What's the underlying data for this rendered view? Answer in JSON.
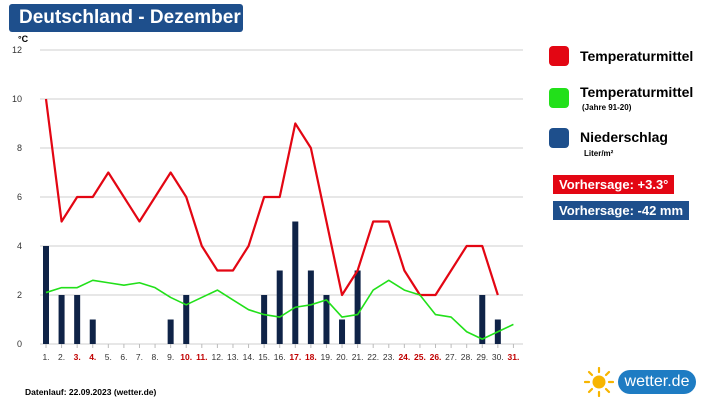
{
  "header": {
    "title": "Deutschland - Dezember"
  },
  "legend": {
    "items": [
      {
        "label": "Temperaturmittel",
        "sub": "",
        "color": "#e30613"
      },
      {
        "label": "Temperaturmittel",
        "sub": "(Jahre 91-20)",
        "color": "#22e01a"
      },
      {
        "label": "Niederschlag",
        "sub": "Liter/m²",
        "color": "#1e4f8c"
      }
    ]
  },
  "forecast": {
    "temp": "Vorhersage: +3.3°",
    "precip": "Vorhersage: -42 mm",
    "temp_color": "#e30613",
    "precip_color": "#1e4f8c"
  },
  "footer": {
    "text": "Datenlauf: 22.09.2023 (wetter.de)"
  },
  "logo": {
    "text": "wetter.de"
  },
  "chart_data": {
    "type": "bar",
    "unit_label": "°C",
    "ylim": [
      0,
      12
    ],
    "yticks": [
      0,
      2,
      4,
      6,
      8,
      10,
      12
    ],
    "grid": true,
    "categories": [
      "1.",
      "2.",
      "3.",
      "4.",
      "5.",
      "6.",
      "7.",
      "8.",
      "9.",
      "10.",
      "11.",
      "12.",
      "13.",
      "14.",
      "15.",
      "16.",
      "17.",
      "18.",
      "19.",
      "20.",
      "21.",
      "22.",
      "23.",
      "24.",
      "25.",
      "26.",
      "27.",
      "28.",
      "29.",
      "30.",
      "31."
    ],
    "highlight_categories": [
      "3.",
      "4.",
      "10.",
      "11.",
      "17.",
      "18.",
      "24.",
      "25.",
      "26.",
      "31."
    ],
    "highlight_color": "#c00000",
    "series": [
      {
        "name": "Niederschlag",
        "kind": "bar",
        "color": "#0f2347",
        "values": [
          4,
          2,
          2,
          1,
          0,
          0,
          0,
          0,
          1,
          2,
          0,
          0,
          0,
          0,
          2,
          3,
          5,
          3,
          2,
          1,
          3,
          0,
          0,
          0,
          0,
          0,
          0,
          0,
          2,
          1,
          null
        ]
      },
      {
        "name": "Temperaturmittel",
        "kind": "line",
        "color": "#e30613",
        "values": [
          10,
          5,
          6,
          6,
          7,
          6,
          5,
          6,
          7,
          6,
          4,
          3,
          3,
          4,
          6,
          6,
          9,
          8,
          5,
          2,
          3,
          5,
          5,
          3,
          2,
          2,
          3,
          4,
          4,
          2,
          null
        ]
      },
      {
        "name": "Temperaturmittel (Jahre 91-20)",
        "kind": "line",
        "color": "#22e01a",
        "values": [
          2.1,
          2.3,
          2.3,
          2.6,
          2.5,
          2.4,
          2.5,
          2.3,
          1.9,
          1.6,
          1.9,
          2.2,
          1.8,
          1.4,
          1.2,
          1.1,
          1.5,
          1.6,
          1.8,
          1.1,
          1.2,
          2.2,
          2.6,
          2.2,
          2.0,
          1.2,
          1.1,
          0.5,
          0.2,
          0.5,
          0.8
        ]
      }
    ]
  }
}
